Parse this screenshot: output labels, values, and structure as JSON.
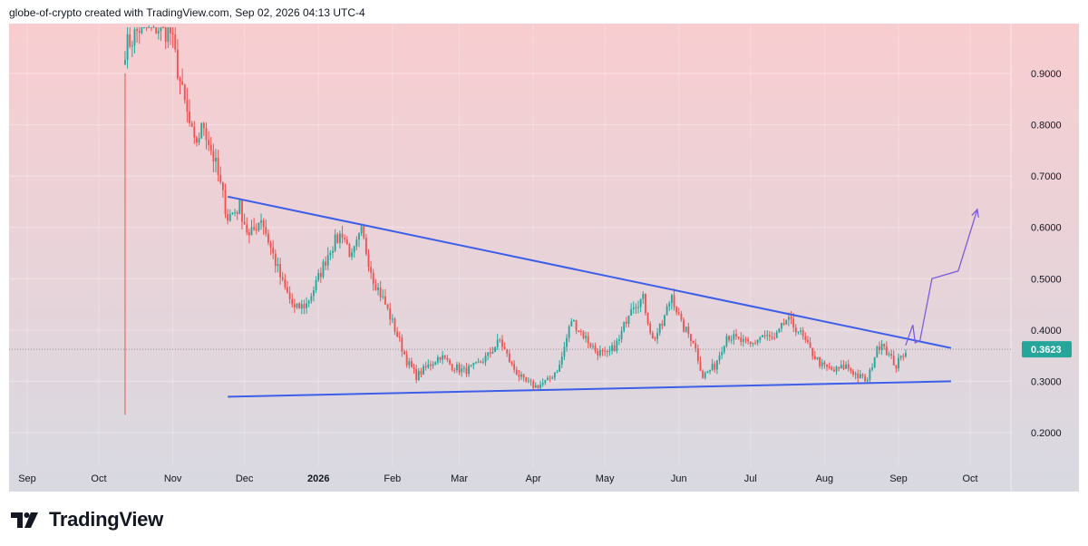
{
  "header": {
    "attribution": "globe-of-crypto created with TradingView.com, Sep 02, 2026 04:13 UTC-4"
  },
  "footer": {
    "brand": "TradingView",
    "logo_icon": "tradingview-logo-icon"
  },
  "colors": {
    "bg_top": "#f8cdd0",
    "bg_bottom": "#d8d9e1",
    "up": "#26a69a",
    "down": "#ef5350",
    "trendline": "#3d5ee8",
    "projection": "#7b5cdc",
    "last_price_bg": "#26a69a"
  },
  "chart_data": {
    "type": "candlestick",
    "title": "",
    "xlabel": "",
    "ylabel": "",
    "ylim": [
      0.2,
      0.99
    ],
    "y_ticks": [
      "0.9000",
      "0.8000",
      "0.7000",
      "0.6000",
      "0.5000",
      "0.4000",
      "0.3000",
      "0.2000"
    ],
    "y_tick_values": [
      0.9,
      0.8,
      0.7,
      0.6,
      0.5,
      0.4,
      0.3,
      0.2
    ],
    "x_ticks": [
      {
        "label": "Sep",
        "date": "2025-09-01"
      },
      {
        "label": "Oct",
        "date": "2025-10-01"
      },
      {
        "label": "Nov",
        "date": "2025-11-01"
      },
      {
        "label": "Dec",
        "date": "2025-12-01"
      },
      {
        "label": "2026",
        "date": "2026-01-01",
        "bold": true
      },
      {
        "label": "Feb",
        "date": "2026-02-01"
      },
      {
        "label": "Mar",
        "date": "2026-03-01"
      },
      {
        "label": "Apr",
        "date": "2026-04-01"
      },
      {
        "label": "May",
        "date": "2026-05-01"
      },
      {
        "label": "Jun",
        "date": "2026-06-01"
      },
      {
        "label": "Jul",
        "date": "2026-07-01"
      },
      {
        "label": "Aug",
        "date": "2026-08-01"
      },
      {
        "label": "Sep",
        "date": "2026-09-01"
      },
      {
        "label": "Oct",
        "date": "2026-10-01"
      }
    ],
    "last_price": 0.3623,
    "last_price_label": "0.3623",
    "close_path": [
      [
        "2025-10-12",
        0.95
      ],
      [
        "2025-10-20",
        1.0
      ],
      [
        "2025-10-31",
        0.98
      ],
      [
        "2025-11-05",
        0.86
      ],
      [
        "2025-11-10",
        0.76
      ],
      [
        "2025-11-14",
        0.8
      ],
      [
        "2025-11-19",
        0.72
      ],
      [
        "2025-11-24",
        0.62
      ],
      [
        "2025-11-29",
        0.64
      ],
      [
        "2025-12-03",
        0.58
      ],
      [
        "2025-12-08",
        0.62
      ],
      [
        "2025-12-12",
        0.56
      ],
      [
        "2025-12-17",
        0.49
      ],
      [
        "2025-12-22",
        0.44
      ],
      [
        "2025-12-27",
        0.45
      ],
      [
        "2025-12-31",
        0.49
      ],
      [
        "2026-01-06",
        0.56
      ],
      [
        "2026-01-11",
        0.59
      ],
      [
        "2026-01-15",
        0.54
      ],
      [
        "2026-01-19",
        0.59
      ],
      [
        "2026-01-24",
        0.5
      ],
      [
        "2026-01-29",
        0.45
      ],
      [
        "2026-02-03",
        0.39
      ],
      [
        "2026-02-07",
        0.34
      ],
      [
        "2026-02-11",
        0.31
      ],
      [
        "2026-02-16",
        0.33
      ],
      [
        "2026-02-21",
        0.35
      ],
      [
        "2026-02-26",
        0.33
      ],
      [
        "2026-03-03",
        0.32
      ],
      [
        "2026-03-08",
        0.33
      ],
      [
        "2026-03-13",
        0.35
      ],
      [
        "2026-03-18",
        0.38
      ],
      [
        "2026-03-23",
        0.33
      ],
      [
        "2026-03-28",
        0.3
      ],
      [
        "2026-04-02",
        0.29
      ],
      [
        "2026-04-07",
        0.3
      ],
      [
        "2026-04-12",
        0.33
      ],
      [
        "2026-04-17",
        0.42
      ],
      [
        "2026-04-22",
        0.39
      ],
      [
        "2026-04-27",
        0.36
      ],
      [
        "2026-05-02",
        0.35
      ],
      [
        "2026-05-07",
        0.38
      ],
      [
        "2026-05-12",
        0.45
      ],
      [
        "2026-05-17",
        0.46
      ],
      [
        "2026-05-21",
        0.38
      ],
      [
        "2026-05-25",
        0.41
      ],
      [
        "2026-05-29",
        0.47
      ],
      [
        "2026-06-02",
        0.41
      ],
      [
        "2026-06-07",
        0.38
      ],
      [
        "2026-06-11",
        0.31
      ],
      [
        "2026-06-16",
        0.33
      ],
      [
        "2026-06-21",
        0.39
      ],
      [
        "2026-06-26",
        0.38
      ],
      [
        "2026-07-01",
        0.37
      ],
      [
        "2026-07-06",
        0.39
      ],
      [
        "2026-07-11",
        0.38
      ],
      [
        "2026-07-16",
        0.42
      ],
      [
        "2026-07-21",
        0.4
      ],
      [
        "2026-07-26",
        0.36
      ],
      [
        "2026-07-31",
        0.33
      ],
      [
        "2026-08-05",
        0.32
      ],
      [
        "2026-08-10",
        0.33
      ],
      [
        "2026-08-15",
        0.31
      ],
      [
        "2026-08-19",
        0.3
      ],
      [
        "2026-08-22",
        0.35
      ],
      [
        "2026-08-25",
        0.38
      ],
      [
        "2026-08-28",
        0.35
      ],
      [
        "2026-08-31",
        0.33
      ],
      [
        "2026-09-04",
        0.3623
      ]
    ],
    "drawings": {
      "resistance": [
        [
          "2025-11-24",
          0.66
        ],
        [
          "2026-09-23",
          0.365
        ]
      ],
      "support": [
        [
          "2025-11-24",
          0.27
        ],
        [
          "2026-09-23",
          0.3
        ]
      ],
      "projection": [
        [
          "2026-09-04",
          0.37
        ],
        [
          "2026-09-07",
          0.41
        ],
        [
          "2026-09-08",
          0.375
        ],
        [
          "2026-09-10",
          0.38
        ],
        [
          "2026-09-15",
          0.5
        ],
        [
          "2026-09-26",
          0.515
        ],
        [
          "2026-10-04",
          0.635
        ]
      ],
      "spike": {
        "date": "2025-10-12",
        "low": 0.235,
        "high": 0.9
      }
    }
  }
}
